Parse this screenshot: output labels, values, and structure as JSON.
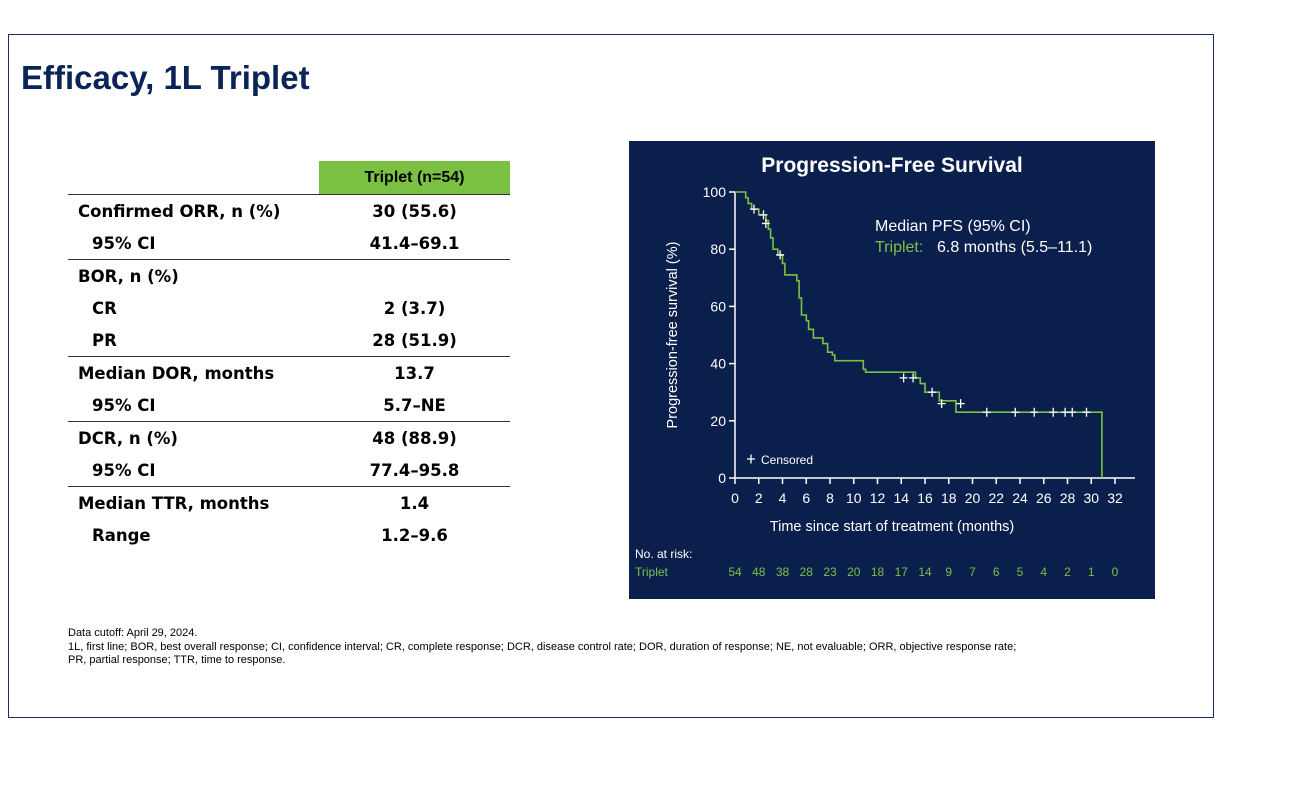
{
  "slide": {
    "title": "Efficacy, 1L Triplet"
  },
  "table": {
    "header": "Triplet (n=54)",
    "groups": [
      {
        "rows": [
          {
            "label": "Confirmed ORR, n (%)",
            "value": "30 (55.6)",
            "indent": false
          },
          {
            "label": "95% CI",
            "value": "41.4–69.1",
            "indent": true
          }
        ]
      },
      {
        "rows": [
          {
            "label": "BOR, n (%)",
            "value": "",
            "indent": false
          },
          {
            "label": "CR",
            "value": "2 (3.7)",
            "indent": true
          },
          {
            "label": "PR",
            "value": "28 (51.9)",
            "indent": true
          }
        ]
      },
      {
        "rows": [
          {
            "label": "Median DOR, months",
            "value": "13.7",
            "indent": false
          },
          {
            "label": "95% CI",
            "value": "5.7–NE",
            "indent": true
          }
        ]
      },
      {
        "rows": [
          {
            "label": "DCR, n (%)",
            "value": "48 (88.9)",
            "indent": false
          },
          {
            "label": "95% CI",
            "value": "77.4–95.8",
            "indent": true
          }
        ]
      },
      {
        "rows": [
          {
            "label": "Median TTR, months",
            "value": "1.4",
            "indent": false
          },
          {
            "label": "Range",
            "value": "1.2–9.6",
            "indent": true
          }
        ]
      }
    ]
  },
  "chart_data": {
    "type": "line",
    "title": "Progression-Free Survival",
    "xlabel": "Time since start of treatment (months)",
    "ylabel": "Progression-free survival (%)",
    "xlim": [
      0,
      32
    ],
    "ylim": [
      0,
      100
    ],
    "xticks": [
      0,
      2,
      4,
      6,
      8,
      10,
      12,
      14,
      16,
      18,
      20,
      22,
      24,
      26,
      28,
      30,
      32
    ],
    "yticks": [
      0,
      20,
      40,
      60,
      80,
      100
    ],
    "grid": false,
    "annotation": {
      "heading": "Median PFS (95% CI)",
      "series_label": "Triplet:",
      "value_text": "6.8 months (5.5–11.1)"
    },
    "legend": {
      "marker": "+",
      "label": "Censored"
    },
    "series": [
      {
        "name": "Triplet",
        "color": "#7ac143",
        "curve": [
          [
            0,
            100
          ],
          [
            0.9,
            100
          ],
          [
            0.9,
            98
          ],
          [
            1.1,
            98
          ],
          [
            1.1,
            96
          ],
          [
            1.4,
            96
          ],
          [
            1.4,
            94
          ],
          [
            2.0,
            94
          ],
          [
            2.0,
            92
          ],
          [
            2.6,
            92
          ],
          [
            2.6,
            90
          ],
          [
            2.8,
            90
          ],
          [
            2.8,
            87
          ],
          [
            3.0,
            87
          ],
          [
            3.0,
            84
          ],
          [
            3.2,
            84
          ],
          [
            3.2,
            80
          ],
          [
            3.6,
            80
          ],
          [
            3.6,
            78
          ],
          [
            4.0,
            78
          ],
          [
            4.0,
            75
          ],
          [
            4.2,
            75
          ],
          [
            4.2,
            71
          ],
          [
            5.2,
            71
          ],
          [
            5.2,
            69
          ],
          [
            5.4,
            69
          ],
          [
            5.4,
            63
          ],
          [
            5.6,
            63
          ],
          [
            5.6,
            57
          ],
          [
            6.0,
            57
          ],
          [
            6.0,
            55
          ],
          [
            6.2,
            55
          ],
          [
            6.2,
            52
          ],
          [
            6.6,
            52
          ],
          [
            6.6,
            49
          ],
          [
            7.4,
            49
          ],
          [
            7.4,
            47
          ],
          [
            7.8,
            47
          ],
          [
            7.8,
            44
          ],
          [
            8.2,
            44
          ],
          [
            8.2,
            43
          ],
          [
            8.4,
            43
          ],
          [
            8.4,
            41
          ],
          [
            10.8,
            41
          ],
          [
            10.8,
            38
          ],
          [
            11.0,
            38
          ],
          [
            11.0,
            37
          ],
          [
            15.2,
            37
          ],
          [
            15.2,
            35
          ],
          [
            15.6,
            35
          ],
          [
            15.6,
            33
          ],
          [
            16.0,
            33
          ],
          [
            16.0,
            30
          ],
          [
            17.2,
            30
          ],
          [
            17.2,
            27
          ],
          [
            18.6,
            27
          ],
          [
            18.6,
            23
          ],
          [
            30.9,
            23
          ],
          [
            30.9,
            0
          ]
        ],
        "censored": [
          [
            1.6,
            94
          ],
          [
            2.4,
            92
          ],
          [
            2.6,
            89
          ],
          [
            3.8,
            78
          ],
          [
            14.2,
            35
          ],
          [
            15.0,
            35
          ],
          [
            16.6,
            30
          ],
          [
            17.4,
            26
          ],
          [
            19.0,
            26
          ],
          [
            21.2,
            23
          ],
          [
            23.6,
            23
          ],
          [
            25.2,
            23
          ],
          [
            26.8,
            23
          ],
          [
            27.8,
            23
          ],
          [
            28.4,
            23
          ],
          [
            29.6,
            23
          ]
        ]
      }
    ],
    "risk_table": {
      "heading": "No. at risk:",
      "label": "Triplet",
      "times": [
        0,
        2,
        4,
        6,
        8,
        10,
        12,
        14,
        16,
        18,
        20,
        22,
        24,
        26,
        28,
        30,
        32
      ],
      "values": [
        54,
        48,
        38,
        28,
        23,
        20,
        18,
        17,
        14,
        9,
        7,
        6,
        5,
        4,
        2,
        1,
        0
      ]
    },
    "colors": {
      "background": "#0b1f4d",
      "axis": "#ffffff",
      "text": "#ffffff",
      "accent": "#7ac143"
    }
  },
  "footnotes": [
    "Data cutoff: April 29, 2024.",
    "1L, first line; BOR, best overall response; CI, confidence interval; CR, complete response; DCR, disease control rate; DOR, duration of response; NE, not evaluable; ORR, objective response rate;",
    "PR, partial response; TTR, time to response."
  ]
}
